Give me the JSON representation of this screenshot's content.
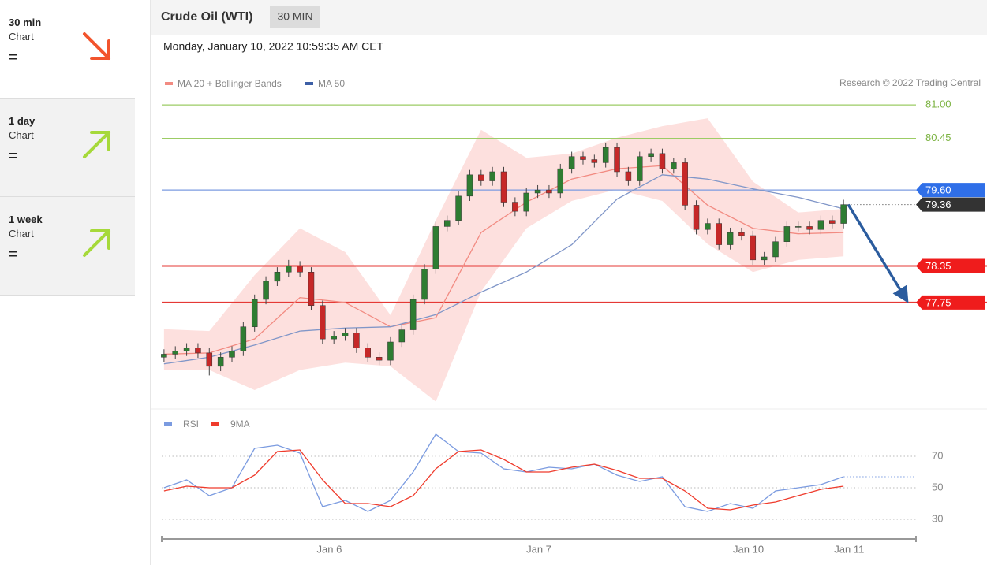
{
  "sidebar": [
    {
      "timeframe": "30 min",
      "label": "Chart",
      "signal": "="
    },
    {
      "timeframe": "1 day",
      "label": "Chart",
      "signal": "="
    },
    {
      "timeframe": "1 week",
      "label": "Chart",
      "signal": "="
    }
  ],
  "header": {
    "title": "Crude Oil (WTI)",
    "timeframe": "30 MIN",
    "timestamp": "Monday, January 10, 2022 10:59:35 AM CET",
    "credit": "Research © 2022 Trading Central"
  },
  "chart_data": [
    {
      "type": "candlestick",
      "x": [
        0,
        1,
        2,
        3,
        4,
        5,
        6,
        7,
        8,
        9,
        10,
        11,
        12,
        13,
        14,
        15,
        16,
        17,
        18,
        19,
        20,
        21,
        22,
        23,
        24,
        25,
        26,
        27,
        28,
        29,
        30,
        31,
        32,
        33,
        34,
        35,
        36,
        37,
        38,
        39,
        40,
        41,
        42,
        43,
        44,
        45,
        46,
        47,
        48,
        49,
        50,
        51,
        52,
        53,
        54,
        55,
        56,
        57,
        58,
        59,
        60
      ],
      "open": [
        76.85,
        76.9,
        76.95,
        77.0,
        76.92,
        76.7,
        76.85,
        76.95,
        77.35,
        77.8,
        78.1,
        78.25,
        78.35,
        78.25,
        77.7,
        77.15,
        77.2,
        77.25,
        77.0,
        76.85,
        76.8,
        77.1,
        77.3,
        77.8,
        78.3,
        79.0,
        79.1,
        79.5,
        79.85,
        79.75,
        79.9,
        79.4,
        79.25,
        79.55,
        79.6,
        79.55,
        79.95,
        80.15,
        80.1,
        80.05,
        80.3,
        79.9,
        79.75,
        80.15,
        80.2,
        79.95,
        80.05,
        79.35,
        78.95,
        79.05,
        78.7,
        78.9,
        78.85,
        78.45,
        78.5,
        78.75,
        79.0,
        79.0,
        78.95,
        79.1,
        79.05
      ],
      "high": [
        76.98,
        77.03,
        77.08,
        77.08,
        77.0,
        76.93,
        77.03,
        77.43,
        77.88,
        78.18,
        78.33,
        78.45,
        78.43,
        78.33,
        77.78,
        77.28,
        77.33,
        77.33,
        77.08,
        76.93,
        77.18,
        77.38,
        77.88,
        78.38,
        79.08,
        79.18,
        79.58,
        79.93,
        79.93,
        79.98,
        79.98,
        79.48,
        79.63,
        79.68,
        79.68,
        80.03,
        80.23,
        80.23,
        80.18,
        80.38,
        80.38,
        79.98,
        80.23,
        80.28,
        80.28,
        80.13,
        80.13,
        79.43,
        79.13,
        79.13,
        78.98,
        78.98,
        78.93,
        78.58,
        78.83,
        79.08,
        79.08,
        79.08,
        79.18,
        79.18,
        79.44
      ],
      "low": [
        76.77,
        76.82,
        76.87,
        76.84,
        76.55,
        76.62,
        76.77,
        76.87,
        77.27,
        77.72,
        78.02,
        78.17,
        78.17,
        77.62,
        77.07,
        77.07,
        77.12,
        76.92,
        76.77,
        76.72,
        76.72,
        77.02,
        77.22,
        77.72,
        78.22,
        78.92,
        79.02,
        79.42,
        79.67,
        79.67,
        79.32,
        79.17,
        79.17,
        79.47,
        79.47,
        79.47,
        79.87,
        80.02,
        79.97,
        79.97,
        79.82,
        79.67,
        79.67,
        80.07,
        79.87,
        79.87,
        79.27,
        78.87,
        78.87,
        78.62,
        78.62,
        78.77,
        78.37,
        78.37,
        78.42,
        78.67,
        78.92,
        78.87,
        78.87,
        78.97,
        78.97
      ],
      "close": [
        76.9,
        76.95,
        77.0,
        76.92,
        76.7,
        76.85,
        76.95,
        77.35,
        77.8,
        78.1,
        78.25,
        78.35,
        78.25,
        77.7,
        77.15,
        77.2,
        77.25,
        77.0,
        76.85,
        76.8,
        77.1,
        77.3,
        77.8,
        78.3,
        79.0,
        79.1,
        79.5,
        79.85,
        79.75,
        79.9,
        79.4,
        79.25,
        79.55,
        79.6,
        79.55,
        79.95,
        80.15,
        80.1,
        80.05,
        80.3,
        79.9,
        79.75,
        80.15,
        80.2,
        79.95,
        80.05,
        79.35,
        78.95,
        79.05,
        78.7,
        78.9,
        78.85,
        78.45,
        78.5,
        78.75,
        79.0,
        79.0,
        78.95,
        79.1,
        79.05,
        79.36
      ],
      "up_color": "#2e7d32",
      "down_color": "#c62828",
      "series": [
        {
          "name": "MA 20 + Bollinger Bands",
          "color": "#f28b82",
          "band_color": "#fde0de",
          "x": [
            0,
            4,
            8,
            12,
            16,
            20,
            24,
            28,
            32,
            36,
            40,
            44,
            48,
            52,
            56,
            60
          ],
          "values": [
            76.9,
            76.92,
            77.15,
            77.83,
            77.75,
            77.35,
            77.5,
            78.9,
            79.4,
            79.78,
            79.95,
            80.0,
            79.35,
            78.97,
            78.88,
            78.9
          ],
          "upper": [
            77.31,
            77.28,
            78.2,
            78.97,
            78.58,
            77.54,
            79.1,
            80.59,
            80.13,
            80.2,
            80.46,
            80.65,
            80.78,
            79.74,
            79.23,
            79.29
          ],
          "lower": [
            76.64,
            76.64,
            76.31,
            76.64,
            76.76,
            76.7,
            76.12,
            77.93,
            78.97,
            79.42,
            79.61,
            79.42,
            78.71,
            78.25,
            78.45,
            78.51
          ]
        },
        {
          "name": "MA 50",
          "color": "#8096c8",
          "legend_color": "#3d5fa6",
          "x": [
            0,
            4,
            8,
            12,
            16,
            20,
            24,
            28,
            32,
            36,
            40,
            44,
            48,
            52,
            56,
            60
          ],
          "values": [
            76.74,
            76.85,
            77.05,
            77.28,
            77.33,
            77.35,
            77.55,
            77.92,
            78.25,
            78.7,
            79.45,
            79.85,
            79.78,
            79.62,
            79.48,
            79.29
          ]
        }
      ],
      "levels": [
        {
          "value": 81.0,
          "label": "81.00"
        },
        80.45,
        {
          "value": 79.6,
          "label": "79.60"
        },
        79.36,
        78.35,
        77.75
      ],
      "level_colors": [
        "#9ccc65",
        "#9ccc65",
        "#7b9be0",
        "#333333",
        "#e53935",
        "#e53935"
      ],
      "label_colors": [
        "#7cb342",
        "#7cb342",
        "#2f6fe8",
        "#333333",
        "#ef1c1c",
        "#ef1c1c"
      ],
      "boxed": [
        false,
        false,
        true,
        true,
        true,
        true
      ],
      "xlim": [
        -0.2,
        66.4
      ],
      "ylim": [
        76.05,
        81.17
      ]
    },
    {
      "type": "line",
      "x": [
        0,
        2,
        4,
        6,
        8,
        10,
        12,
        14,
        16,
        18,
        20,
        22,
        24,
        26,
        28,
        30,
        32,
        34,
        36,
        38,
        40,
        42,
        44,
        46,
        48,
        50,
        52,
        54,
        56,
        58,
        60
      ],
      "series": [
        {
          "name": "RSI",
          "color": "#7b9be0",
          "values": [
            50,
            55,
            45,
            50,
            75,
            77,
            72,
            38,
            42,
            35,
            42,
            60,
            84,
            73,
            72,
            62,
            60,
            63,
            62,
            65,
            58,
            54,
            57,
            38,
            35,
            40,
            37,
            48,
            50,
            52,
            57
          ]
        },
        {
          "name": "9MA",
          "color": "#ef3b2c",
          "values": [
            48,
            51,
            50,
            50,
            58,
            73,
            74,
            55,
            40,
            40,
            38,
            45,
            62,
            73,
            74,
            68,
            60,
            60,
            63,
            65,
            61,
            56,
            56,
            48,
            37,
            36,
            39,
            41,
            45,
            49,
            51
          ]
        }
      ],
      "xlim": [
        -0.2,
        66.4
      ],
      "ylim": [
        22,
        97
      ],
      "yticks": [
        30,
        50,
        70
      ],
      "xticks": [
        {
          "value": 14.6,
          "label": "Jan 6"
        },
        {
          "value": 33.1,
          "label": "Jan 7"
        },
        {
          "value": 51.6,
          "label": "Jan 10"
        },
        {
          "value": 60.5,
          "label": "Jan 11"
        }
      ]
    }
  ]
}
